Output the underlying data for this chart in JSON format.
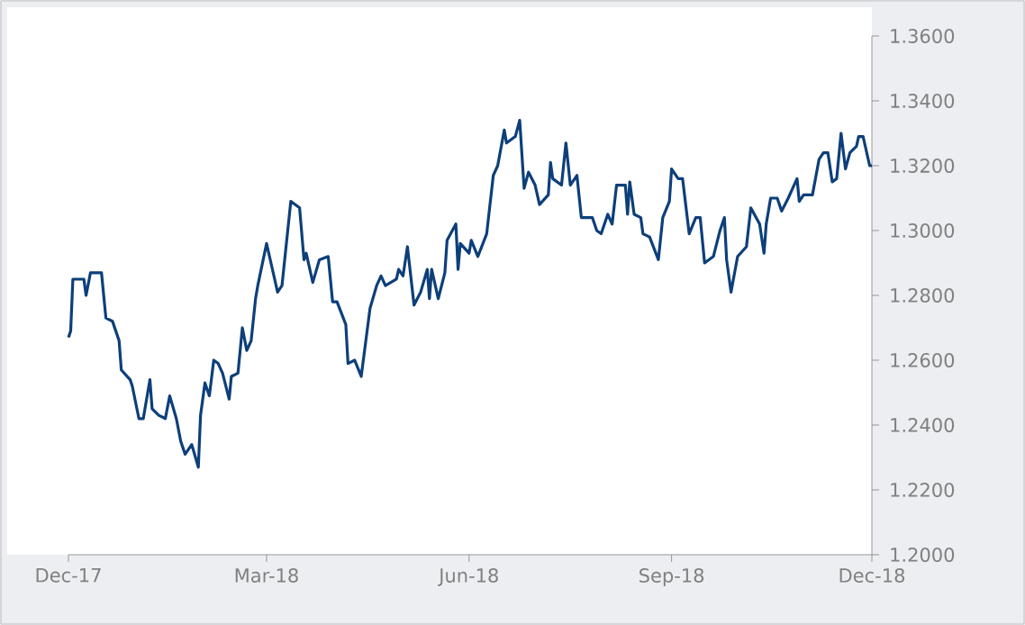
{
  "chart_data": {
    "type": "line",
    "color": "#0d3f7a",
    "x": [
      "2017-12-01",
      "2017-12-02",
      "2017-12-03",
      "2017-12-08",
      "2017-12-09",
      "2017-12-11",
      "2017-12-16",
      "2017-12-18",
      "2017-12-21",
      "2017-12-24",
      "2017-12-25",
      "2017-12-29",
      "2017-12-30",
      "2018-01-02",
      "2018-01-04",
      "2018-01-07",
      "2018-01-08",
      "2018-01-11",
      "2018-01-14",
      "2018-01-16",
      "2018-01-19",
      "2018-01-21",
      "2018-01-23",
      "2018-01-26",
      "2018-01-29",
      "2018-01-30",
      "2018-02-01",
      "2018-02-03",
      "2018-02-05",
      "2018-02-07",
      "2018-02-09",
      "2018-02-12",
      "2018-02-13",
      "2018-02-16",
      "2018-02-18",
      "2018-02-20",
      "2018-02-22",
      "2018-02-24",
      "2018-02-25",
      "2018-03-01",
      "2018-03-03",
      "2018-03-06",
      "2018-03-08",
      "2018-03-10",
      "2018-03-12",
      "2018-03-16",
      "2018-03-18",
      "2018-03-19",
      "2018-03-22",
      "2018-03-25",
      "2018-03-29",
      "2018-03-31",
      "2018-04-02",
      "2018-04-06",
      "2018-04-07",
      "2018-04-10",
      "2018-04-13",
      "2018-04-17",
      "2018-04-20",
      "2018-04-22",
      "2018-04-24",
      "2018-04-29",
      "2018-04-30",
      "2018-05-02",
      "2018-05-04",
      "2018-05-07",
      "2018-05-10",
      "2018-05-13",
      "2018-05-14",
      "2018-05-15",
      "2018-05-18",
      "2018-05-21",
      "2018-05-22",
      "2018-05-26",
      "2018-05-27",
      "2018-05-28",
      "2018-06-01",
      "2018-06-02",
      "2018-06-05",
      "2018-06-09",
      "2018-06-12",
      "2018-06-14",
      "2018-06-17",
      "2018-06-18",
      "2018-06-22",
      "2018-06-24",
      "2018-06-26",
      "2018-06-28",
      "2018-07-01",
      "2018-07-03",
      "2018-07-07",
      "2018-07-08",
      "2018-07-09",
      "2018-07-13",
      "2018-07-15",
      "2018-07-17",
      "2018-07-20",
      "2018-07-22",
      "2018-07-27",
      "2018-07-29",
      "2018-07-31",
      "2018-08-03",
      "2018-08-05",
      "2018-08-07",
      "2018-08-11",
      "2018-08-12",
      "2018-08-13",
      "2018-08-15",
      "2018-08-18",
      "2018-08-19",
      "2018-08-22",
      "2018-08-26",
      "2018-08-28",
      "2018-08-31",
      "2018-09-01",
      "2018-09-04",
      "2018-09-06",
      "2018-09-09",
      "2018-09-12",
      "2018-09-14",
      "2018-09-16",
      "2018-09-20",
      "2018-09-23",
      "2018-09-25",
      "2018-09-26",
      "2018-09-28",
      "2018-10-01",
      "2018-10-05",
      "2018-10-07",
      "2018-10-11",
      "2018-10-13",
      "2018-10-14",
      "2018-10-16",
      "2018-10-19",
      "2018-10-21",
      "2018-10-24",
      "2018-10-26",
      "2018-10-28",
      "2018-10-29",
      "2018-10-31",
      "2018-11-04",
      "2018-11-07",
      "2018-11-09",
      "2018-11-11",
      "2018-11-13",
      "2018-11-15",
      "2018-11-17",
      "2018-11-19",
      "2018-11-21",
      "2018-11-24",
      "2018-11-25",
      "2018-11-27",
      "2018-11-30",
      "2018-12-01"
    ],
    "values": [
      1.267,
      1.269,
      1.285,
      1.285,
      1.28,
      1.287,
      1.287,
      1.273,
      1.272,
      1.266,
      1.257,
      1.254,
      1.252,
      1.242,
      1.242,
      1.254,
      1.245,
      1.243,
      1.242,
      1.249,
      1.242,
      1.235,
      1.231,
      1.234,
      1.227,
      1.243,
      1.253,
      1.249,
      1.26,
      1.259,
      1.256,
      1.248,
      1.255,
      1.256,
      1.27,
      1.263,
      1.266,
      1.279,
      1.283,
      1.296,
      1.29,
      1.281,
      1.283,
      1.296,
      1.309,
      1.307,
      1.291,
      1.293,
      1.284,
      1.291,
      1.292,
      1.278,
      1.278,
      1.271,
      1.259,
      1.26,
      1.255,
      1.276,
      1.283,
      1.286,
      1.283,
      1.285,
      1.288,
      1.286,
      1.295,
      1.277,
      1.281,
      1.288,
      1.279,
      1.288,
      1.279,
      1.287,
      1.297,
      1.302,
      1.288,
      1.296,
      1.293,
      1.297,
      1.292,
      1.299,
      1.317,
      1.32,
      1.331,
      1.327,
      1.329,
      1.334,
      1.313,
      1.318,
      1.314,
      1.308,
      1.311,
      1.321,
      1.316,
      1.314,
      1.327,
      1.314,
      1.317,
      1.304,
      1.304,
      1.3,
      1.299,
      1.305,
      1.302,
      1.314,
      1.314,
      1.305,
      1.315,
      1.305,
      1.304,
      1.299,
      1.298,
      1.291,
      1.304,
      1.309,
      1.319,
      1.316,
      1.316,
      1.299,
      1.304,
      1.304,
      1.29,
      1.292,
      1.3,
      1.304,
      1.291,
      1.281,
      1.292,
      1.295,
      1.307,
      1.302,
      1.293,
      1.302,
      1.31,
      1.31,
      1.306,
      1.31,
      1.313,
      1.316,
      1.309,
      1.311,
      1.311,
      1.322,
      1.324,
      1.324,
      1.315,
      1.316,
      1.33,
      1.319,
      1.324,
      1.326,
      1.329,
      1.329,
      1.32,
      1.32
    ],
    "xlim": [
      "2017-12-01",
      "2018-12-01"
    ],
    "xticks": [
      {
        "value": "2017-12-01",
        "label": "Dec-17"
      },
      {
        "value": "2018-03-01",
        "label": "Mar-18"
      },
      {
        "value": "2018-06-01",
        "label": "Jun-18"
      },
      {
        "value": "2018-09-01",
        "label": "Sep-18"
      },
      {
        "value": "2018-12-01",
        "label": "Dec-18"
      }
    ],
    "ylim": [
      1.2,
      1.36
    ],
    "yticks": [
      {
        "value": 1.2,
        "label": "1.2000"
      },
      {
        "value": 1.22,
        "label": "1.2200"
      },
      {
        "value": 1.24,
        "label": "1.2400"
      },
      {
        "value": 1.26,
        "label": "1.2600"
      },
      {
        "value": 1.28,
        "label": "1.2800"
      },
      {
        "value": 1.3,
        "label": "1.3000"
      },
      {
        "value": 1.32,
        "label": "1.3200"
      },
      {
        "value": 1.34,
        "label": "1.3400"
      },
      {
        "value": 1.36,
        "label": "1.3600"
      }
    ]
  }
}
